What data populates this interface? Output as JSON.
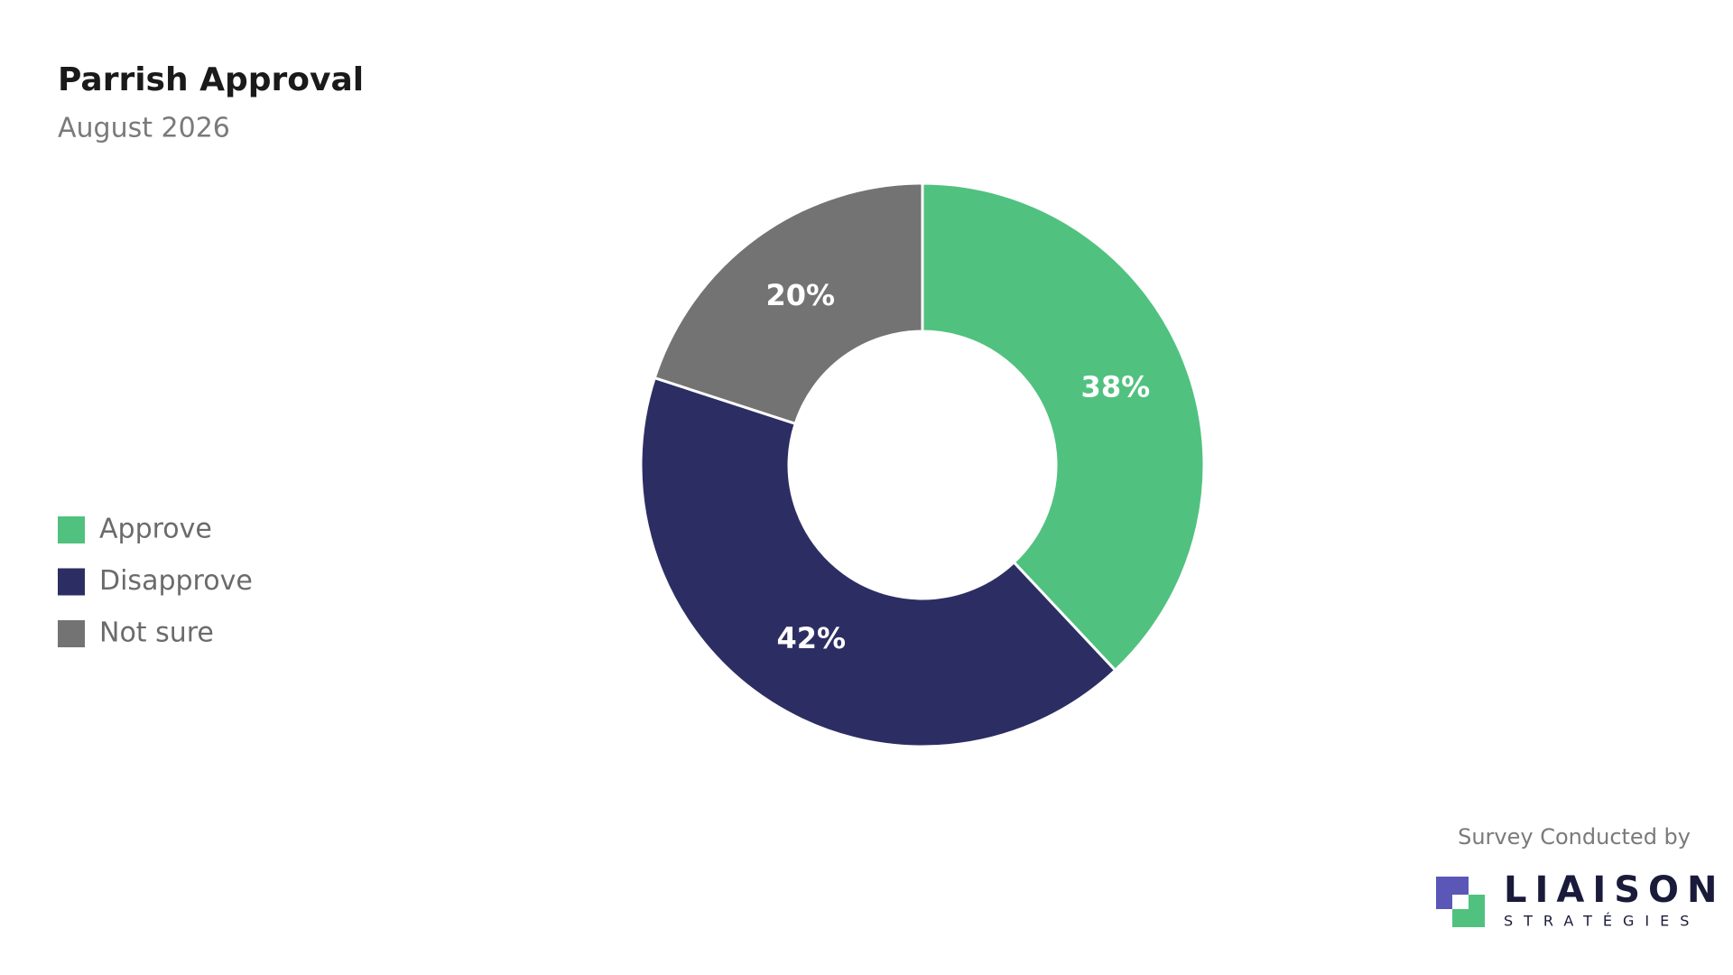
{
  "chart_data": {
    "type": "pie",
    "title": "Parrish Approval",
    "subtitle": "August 2026",
    "categories": [
      "Approve",
      "Disapprove",
      "Not sure"
    ],
    "values": [
      38,
      42,
      20
    ],
    "value_labels": [
      "38%",
      "42%",
      "20%"
    ],
    "colors": [
      "#51c17f",
      "#2c2e63",
      "#737373"
    ],
    "legend": "left",
    "donut": true
  },
  "footer": {
    "text": "Survey Conducted by",
    "logo_name": "LIAISON",
    "logo_sub": "STRATÉGIES"
  }
}
